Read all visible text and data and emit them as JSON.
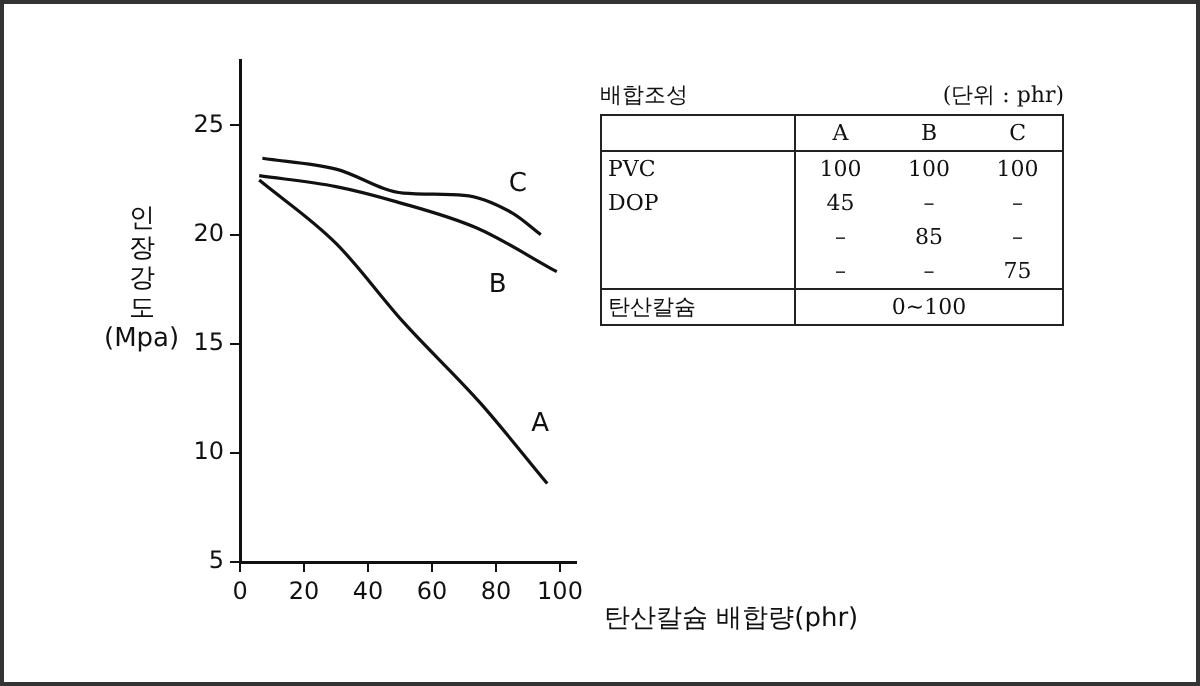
{
  "chart_data": {
    "type": "line",
    "xlabel": "탄산칼슘 배합량(phr)",
    "ylabel": "인장강도 (Mpa)",
    "xlim": [
      0,
      105
    ],
    "ylim": [
      5,
      28
    ],
    "xticks": [
      0,
      20,
      40,
      60,
      80,
      100
    ],
    "yticks": [
      5,
      10,
      15,
      20,
      25
    ],
    "grid": false,
    "legend": false,
    "marker": "none",
    "line_style": "solid",
    "series": [
      {
        "name": "A",
        "color": "#111111",
        "x": [
          6,
          30,
          51,
          75,
          96
        ],
        "values": [
          22.5,
          19.6,
          16.0,
          12.3,
          8.6
        ]
      },
      {
        "name": "B",
        "color": "#111111",
        "x": [
          6,
          30,
          49,
          74,
          99
        ],
        "values": [
          22.7,
          22.2,
          21.5,
          20.3,
          18.3
        ]
      },
      {
        "name": "C",
        "color": "#111111",
        "x": [
          7,
          30,
          51,
          70,
          85,
          94
        ],
        "values": [
          23.5,
          23.0,
          21.9,
          21.8,
          21.0,
          20.0
        ]
      }
    ],
    "annotations": [
      "배합조성",
      "(단위 : phr)",
      "A",
      "B",
      "C",
      "PVC",
      "100",
      "100",
      "100",
      "DOP",
      "45",
      "–",
      "–",
      "–",
      "85",
      "–",
      "–",
      "–",
      "75",
      "탄산칼슘",
      "0~100"
    ]
  }
}
